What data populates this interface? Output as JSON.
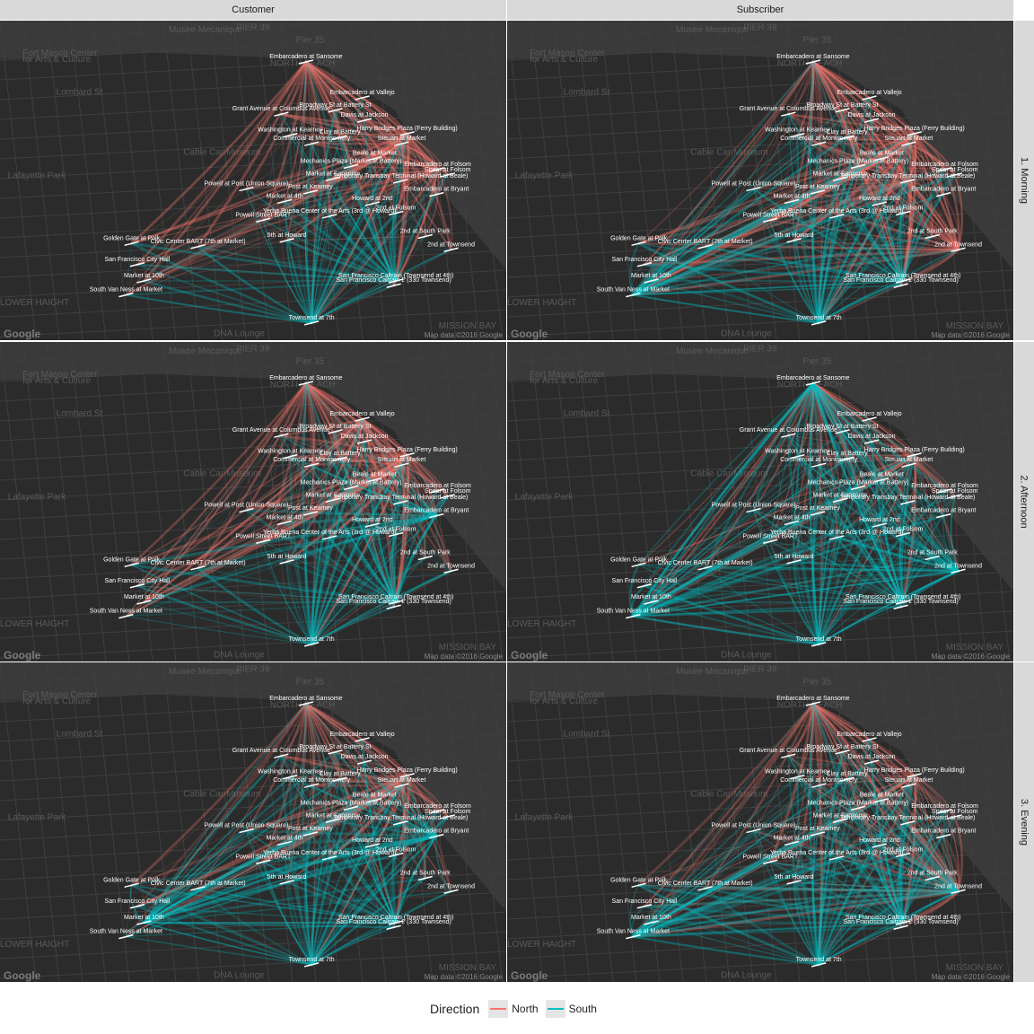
{
  "chart_data": {
    "type": "network-map",
    "facet_columns": [
      "Customer",
      "Subscriber"
    ],
    "facet_rows": [
      "1. Morning",
      "2. Afternoon",
      "3. Evening"
    ],
    "map_attribution": "Map data ©2016 Google",
    "map_logo": "Google",
    "map_labels": [
      {
        "text": "Fort Mason Center",
        "x": -122.4285,
        "y": 37.8055
      },
      {
        "text": "for Arts & Culture",
        "x": -122.4285,
        "y": 37.8047
      },
      {
        "text": "Musee Mecanique",
        "x": -122.4155,
        "y": 37.8085
      },
      {
        "text": "PIER 39",
        "x": -122.4095,
        "y": 37.8088
      },
      {
        "text": "Pier 35",
        "x": -122.4042,
        "y": 37.8072
      },
      {
        "text": "NORTH BEACH",
        "x": -122.4065,
        "y": 37.8042
      },
      {
        "text": "Lombard St",
        "x": -122.4255,
        "y": 37.8005
      },
      {
        "text": "Cable Car Museum",
        "x": -122.4142,
        "y": 37.7928
      },
      {
        "text": "Lafayette Park",
        "x": -122.4298,
        "y": 37.7898
      },
      {
        "text": "MISSION BAY",
        "x": -122.3915,
        "y": 37.7705
      },
      {
        "text": "DNA Lounge",
        "x": -122.4115,
        "y": 37.7695
      },
      {
        "text": "LOWER HAIGHT",
        "x": -122.4305,
        "y": 37.7735
      }
    ],
    "stations": [
      {
        "name": "Embarcadero at Sansome",
        "x": -122.4033,
        "y": 37.8047
      },
      {
        "name": "Embarcadero at Vallejo",
        "x": -122.3983,
        "y": 37.8001
      },
      {
        "name": "Broadway St at Battery St",
        "x": -122.4007,
        "y": 37.7985
      },
      {
        "name": "Grant Avenue at Columbus Avenue",
        "x": -122.4055,
        "y": 37.798
      },
      {
        "name": "Washington at Kearney",
        "x": -122.4047,
        "y": 37.7953
      },
      {
        "name": "Davis at Jackson",
        "x": -122.3981,
        "y": 37.7972
      },
      {
        "name": "Harry Bridges Plaza (Ferry Building)",
        "x": -122.3943,
        "y": 37.7955
      },
      {
        "name": "Clay at Battery",
        "x": -122.4003,
        "y": 37.795
      },
      {
        "name": "Commercial at Montgomery",
        "x": -122.4028,
        "y": 37.7942
      },
      {
        "name": "Beale at Market",
        "x": -122.3972,
        "y": 37.7923
      },
      {
        "name": "Steuart at Market",
        "x": -122.3948,
        "y": 37.7942
      },
      {
        "name": "Embarcadero at Folsom",
        "x": -122.3916,
        "y": 37.7909
      },
      {
        "name": "Spear at Folsom",
        "x": -122.3907,
        "y": 37.7902
      },
      {
        "name": "Mechanics Plaza (Market at Battery)",
        "x": -122.3993,
        "y": 37.7913
      },
      {
        "name": "Market at Sansome",
        "x": -122.4009,
        "y": 37.7897
      },
      {
        "name": "Temporary Transbay Terminal (Howard at Beale)",
        "x": -122.3949,
        "y": 37.7894
      },
      {
        "name": "Powell at Post (Union Square)",
        "x": -122.4086,
        "y": 37.7884
      },
      {
        "name": "Post at Kearney",
        "x": -122.4029,
        "y": 37.788
      },
      {
        "name": "Howard at 2nd",
        "x": -122.3974,
        "y": 37.7865
      },
      {
        "name": "Embarcadero at Bryant",
        "x": -122.3917,
        "y": 37.7877
      },
      {
        "name": "Market at 4th",
        "x": -122.4052,
        "y": 37.7868
      },
      {
        "name": "2nd at Folsom",
        "x": -122.3953,
        "y": 37.7853
      },
      {
        "name": "Powell Street BART",
        "x": -122.4071,
        "y": 37.7844
      },
      {
        "name": "Yerba Buena Center of the Arts (3rd @ Howard)",
        "x": -122.4012,
        "y": 37.7849
      },
      {
        "name": "5th at Howard",
        "x": -122.405,
        "y": 37.7818
      },
      {
        "name": "2nd at South Park",
        "x": -122.3927,
        "y": 37.7823
      },
      {
        "name": "Golden Gate at Polk",
        "x": -122.4188,
        "y": 37.7814
      },
      {
        "name": "Civic Center BART (7th at Market)",
        "x": -122.4129,
        "y": 37.781
      },
      {
        "name": "San Francisco City Hall",
        "x": -122.4183,
        "y": 37.7787
      },
      {
        "name": "2nd at Townsend",
        "x": -122.3904,
        "y": 37.7806
      },
      {
        "name": "Market at 10th",
        "x": -122.4177,
        "y": 37.7766
      },
      {
        "name": "San Francisco Caltrain (Townsend at 4th)",
        "x": -122.3953,
        "y": 37.7766
      },
      {
        "name": "South Van Ness at Market",
        "x": -122.4193,
        "y": 37.7748
      },
      {
        "name": "San Francisco Caltrain 2 (330 Townsend)",
        "x": -122.3955,
        "y": 37.776
      },
      {
        "name": "Townsend at 7th",
        "x": -122.4028,
        "y": 37.7712
      }
    ],
    "hubs": {
      "1. Morning": {
        "Customer": {
          "North": [
            "Embarcadero at Sansome",
            "Harry Bridges Plaza (Ferry Building)",
            "Embarcadero at Folsom",
            "Steuart at Market"
          ],
          "South": [
            "Townsend at 7th",
            "San Francisco Caltrain (Townsend at 4th)"
          ]
        },
        "Subscriber": {
          "North": [
            "Embarcadero at Sansome",
            "Harry Bridges Plaza (Ferry Building)",
            "Mechanics Plaza (Market at Battery)",
            "Temporary Transbay Terminal (Howard at Beale)",
            "2nd at Townsend",
            "Steuart at Market"
          ],
          "South": [
            "San Francisco Caltrain (Townsend at 4th)",
            "Townsend at 7th",
            "South Van Ness at Market"
          ]
        }
      },
      "2. Afternoon": {
        "Customer": {
          "North": [
            "Embarcadero at Sansome",
            "Harry Bridges Plaza (Ferry Building)",
            "Embarcadero at Vallejo",
            "Steuart at Market"
          ],
          "South": [
            "Townsend at 7th",
            "San Francisco Caltrain (Townsend at 4th)",
            "Embarcadero at Bryant"
          ]
        },
        "Subscriber": {
          "North": [
            "Embarcadero at Sansome",
            "Harry Bridges Plaza (Ferry Building)"
          ],
          "South": [
            "San Francisco Caltrain (Townsend at 4th)",
            "Townsend at 7th",
            "South Van Ness at Market",
            "2nd at Townsend",
            "Embarcadero at Sansome"
          ]
        }
      },
      "3. Evening": {
        "Customer": {
          "North": [
            "Embarcadero at Sansome",
            "Harry Bridges Plaza (Ferry Building)",
            "Steuart at Market"
          ],
          "South": [
            "Townsend at 7th",
            "San Francisco Caltrain (Townsend at 4th)",
            "Embarcadero at Bryant",
            "Market at 10th"
          ]
        },
        "Subscriber": {
          "North": [
            "Embarcadero at Sansome",
            "Harry Bridges Plaza (Ferry Building)",
            "2nd at Townsend"
          ],
          "South": [
            "San Francisco Caltrain (Townsend at 4th)",
            "Townsend at 7th",
            "2nd at Townsend",
            "South Van Ness at Market"
          ]
        }
      }
    },
    "legend": {
      "title": "Direction",
      "position": "bottom",
      "entries": [
        {
          "label": "North",
          "color": "#f8766d"
        },
        {
          "label": "South",
          "color": "#00bfc4"
        }
      ]
    },
    "colors": {
      "North": "#f8766d",
      "South": "#00bfc4",
      "map_background": "#2b2b2b",
      "strip": "#d9d9d9",
      "station_text": "#ffffff"
    }
  }
}
